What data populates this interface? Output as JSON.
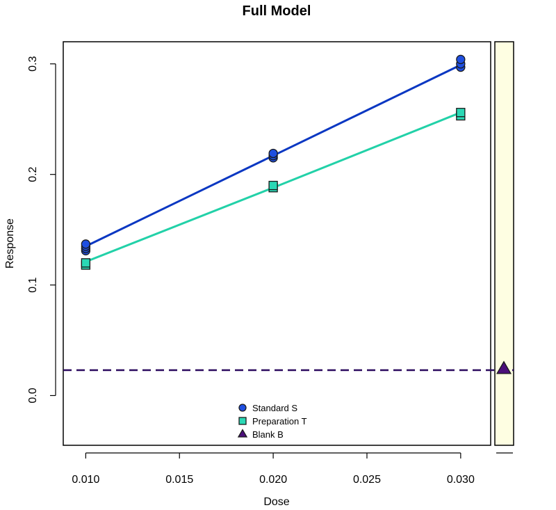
{
  "chart_data": {
    "type": "scatter",
    "title": "Full Model",
    "xlabel": "Dose",
    "ylabel": "Response",
    "xlim": [
      0.0088,
      0.0316
    ],
    "ylim": [
      -0.045,
      0.32
    ],
    "xticks": [
      "0.010",
      "0.015",
      "0.020",
      "0.025",
      "0.030"
    ],
    "yticks": [
      "0.0",
      "0.1",
      "0.2",
      "0.3"
    ],
    "series": [
      {
        "name": "Standard S",
        "color": "#1f4fe0",
        "line_color": "#0a37c2",
        "marker": "circle",
        "points": [
          [
            0.01,
            0.131
          ],
          [
            0.01,
            0.133
          ],
          [
            0.01,
            0.135
          ],
          [
            0.01,
            0.137
          ],
          [
            0.02,
            0.215
          ],
          [
            0.02,
            0.217
          ],
          [
            0.02,
            0.219
          ],
          [
            0.03,
            0.297
          ],
          [
            0.03,
            0.3
          ],
          [
            0.03,
            0.304
          ]
        ],
        "fit": [
          [
            0.01,
            0.135
          ],
          [
            0.02,
            0.217
          ],
          [
            0.03,
            0.299
          ]
        ]
      },
      {
        "name": "Preparation T",
        "color": "#2bd8b5",
        "line_color": "#22d1a8",
        "marker": "square",
        "points": [
          [
            0.01,
            0.118
          ],
          [
            0.01,
            0.12
          ],
          [
            0.02,
            0.188
          ],
          [
            0.02,
            0.19
          ],
          [
            0.03,
            0.253
          ],
          [
            0.03,
            0.256
          ]
        ],
        "fit": [
          [
            0.01,
            0.121
          ],
          [
            0.02,
            0.188
          ],
          [
            0.03,
            0.256
          ]
        ]
      },
      {
        "name": "Blank B",
        "color": "#4b0f7a",
        "marker": "triangle",
        "value": 0.024
      }
    ],
    "blank_line": {
      "y": 0.023,
      "style": "dashed",
      "color": "#2b0a5e"
    },
    "side_panel_color": "#fefee2",
    "legend_position": "bottom-center",
    "grid": false
  }
}
